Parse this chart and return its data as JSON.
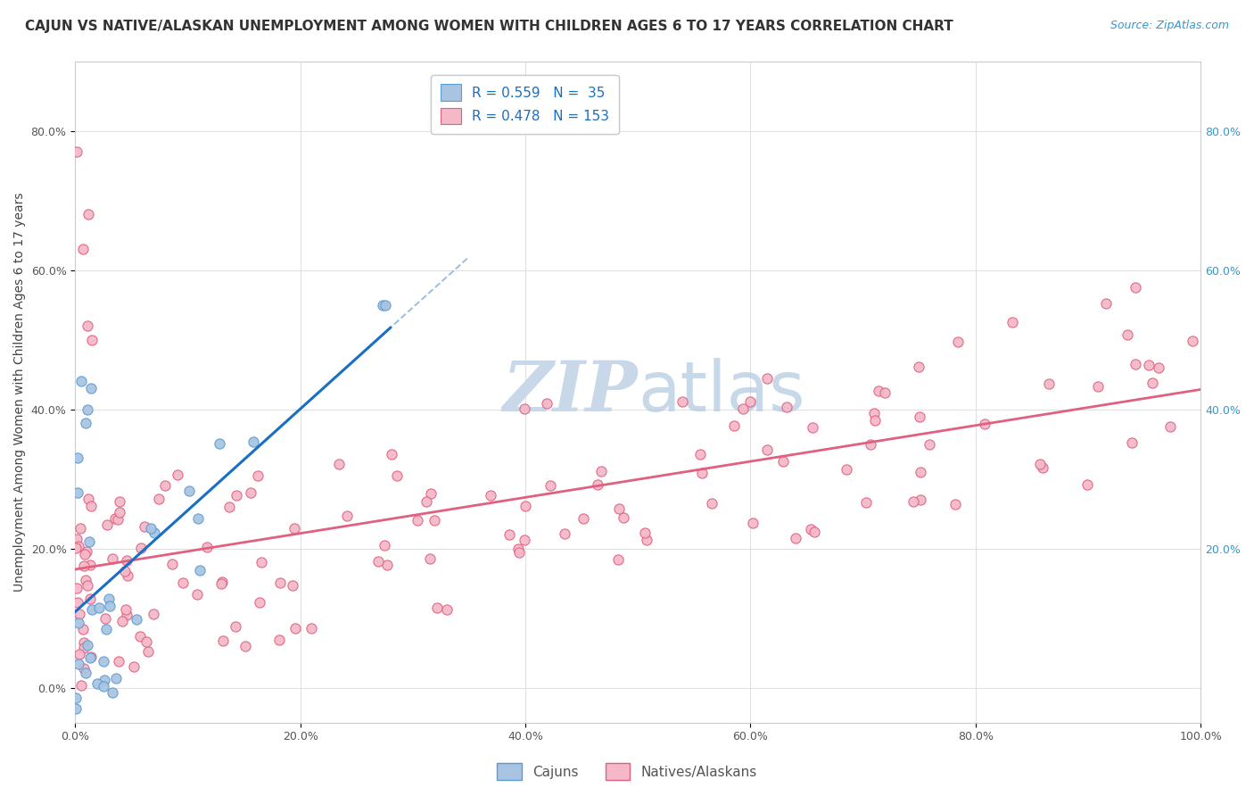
{
  "title": "CAJUN VS NATIVE/ALASKAN UNEMPLOYMENT AMONG WOMEN WITH CHILDREN AGES 6 TO 17 YEARS CORRELATION CHART",
  "source": "Source: ZipAtlas.com",
  "ylabel": "Unemployment Among Women with Children Ages 6 to 17 years",
  "xlim": [
    0.0,
    1.0
  ],
  "ylim": [
    -0.05,
    0.9
  ],
  "xticks": [
    0.0,
    0.2,
    0.4,
    0.6,
    0.8,
    1.0
  ],
  "xticklabels": [
    "0.0%",
    "20.0%",
    "40.0%",
    "60.0%",
    "80.0%",
    "100.0%"
  ],
  "yticks": [
    0.0,
    0.2,
    0.4,
    0.6,
    0.8
  ],
  "yticklabels": [
    "0.0%",
    "20.0%",
    "40.0%",
    "60.0%",
    "80.0%"
  ],
  "cajun_color": "#a8c4e0",
  "cajun_edge_color": "#5b9bd5",
  "native_color": "#f4b8c8",
  "native_edge_color": "#e06080",
  "cajun_R": 0.559,
  "cajun_N": 35,
  "native_R": 0.478,
  "native_N": 153,
  "cajun_line_color": "#1a6fc4",
  "native_line_color": "#e06080",
  "watermark_zip": "ZIP",
  "watermark_atlas": "atlas",
  "watermark_color": "#c8d8e8",
  "legend_bottom": [
    "Cajuns",
    "Natives/Alaskans"
  ],
  "title_fontsize": 11,
  "axis_label_fontsize": 10,
  "tick_fontsize": 9,
  "legend_fontsize": 11,
  "cajun_seed": 42,
  "native_seed": 7
}
